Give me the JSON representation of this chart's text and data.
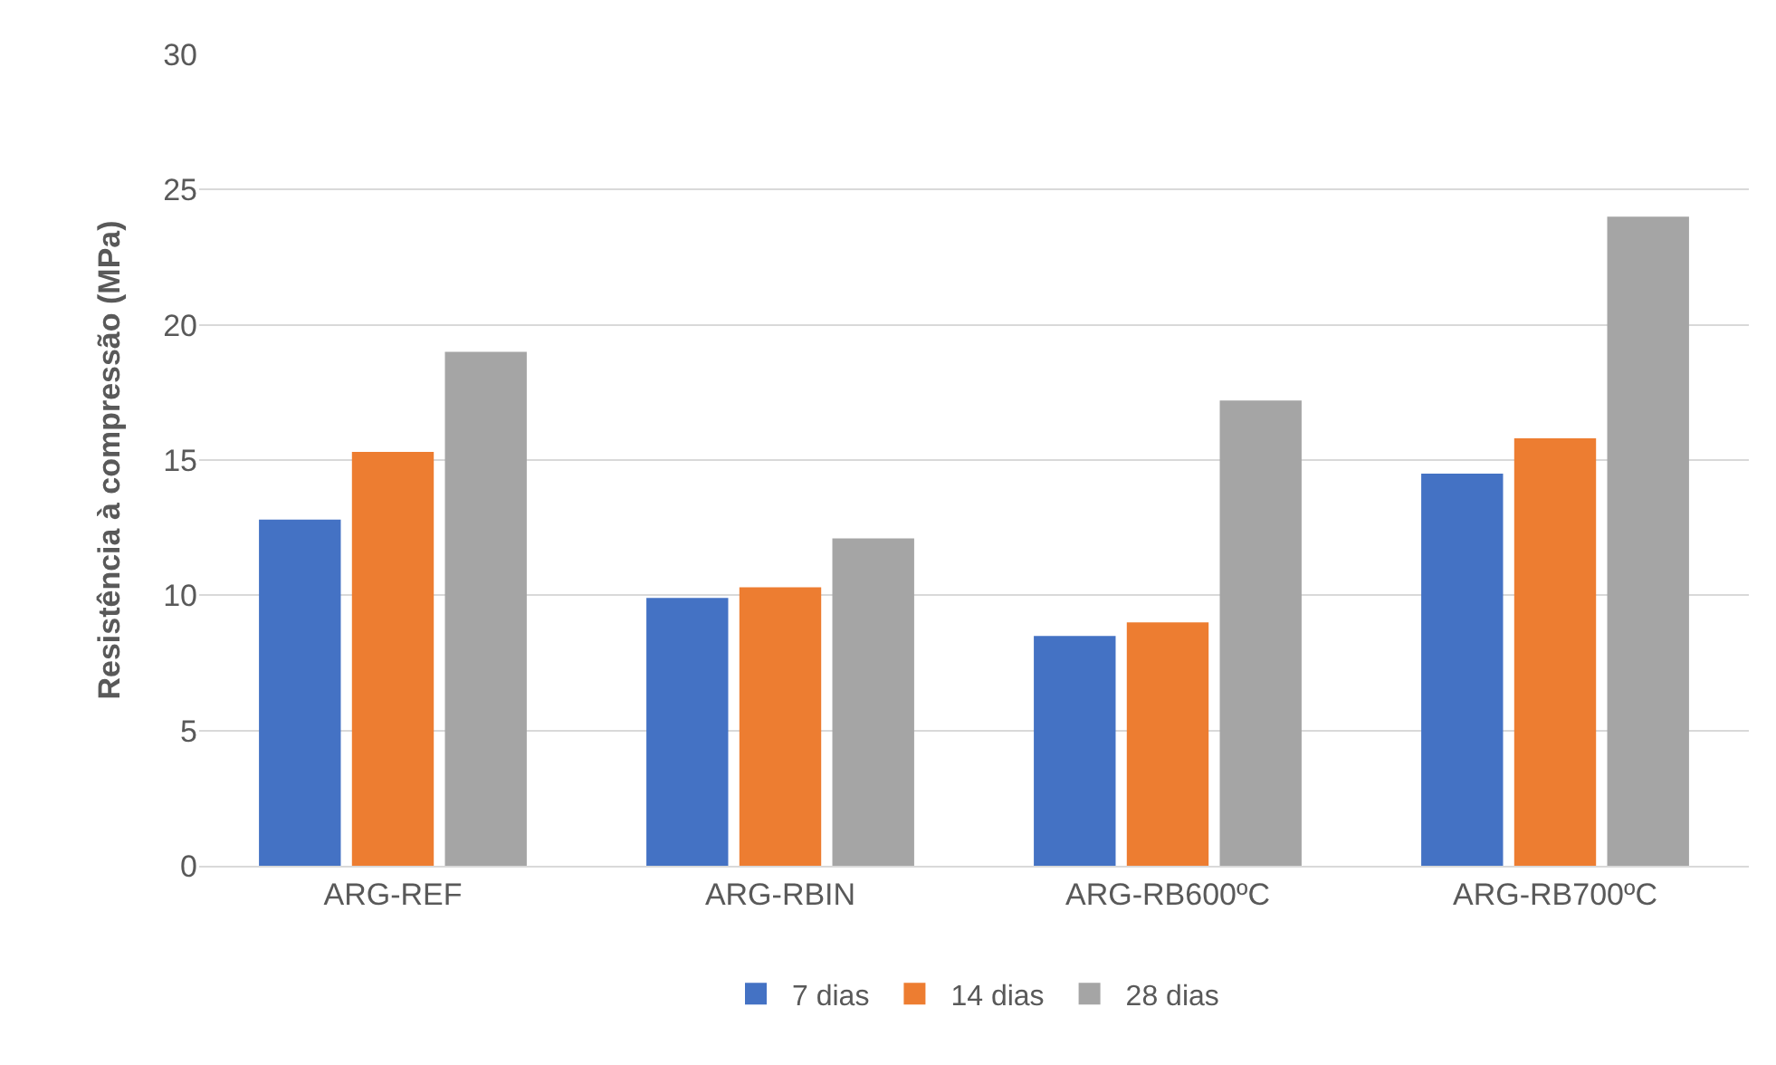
{
  "chart_data": {
    "type": "bar",
    "ylabel": "Resistência à compressão (MPa)",
    "categories": [
      "ARG-REF",
      "ARG-RBIN",
      "ARG-RB600ºC",
      "ARG-RB700ºC"
    ],
    "series": [
      {
        "name": "7 dias",
        "color": "#4472c4",
        "values": [
          12.8,
          9.9,
          8.5,
          14.5
        ]
      },
      {
        "name": "14 dias",
        "color": "#ed7d31",
        "values": [
          15.3,
          10.3,
          9.0,
          15.8
        ]
      },
      {
        "name": "28 dias",
        "color": "#a5a5a5",
        "values": [
          19.0,
          12.1,
          17.2,
          24.0
        ]
      }
    ],
    "ylim": [
      0,
      30
    ],
    "yticks": [
      0,
      5,
      10,
      15,
      20,
      25,
      30
    ],
    "grid": "y",
    "legend": "bottom"
  }
}
